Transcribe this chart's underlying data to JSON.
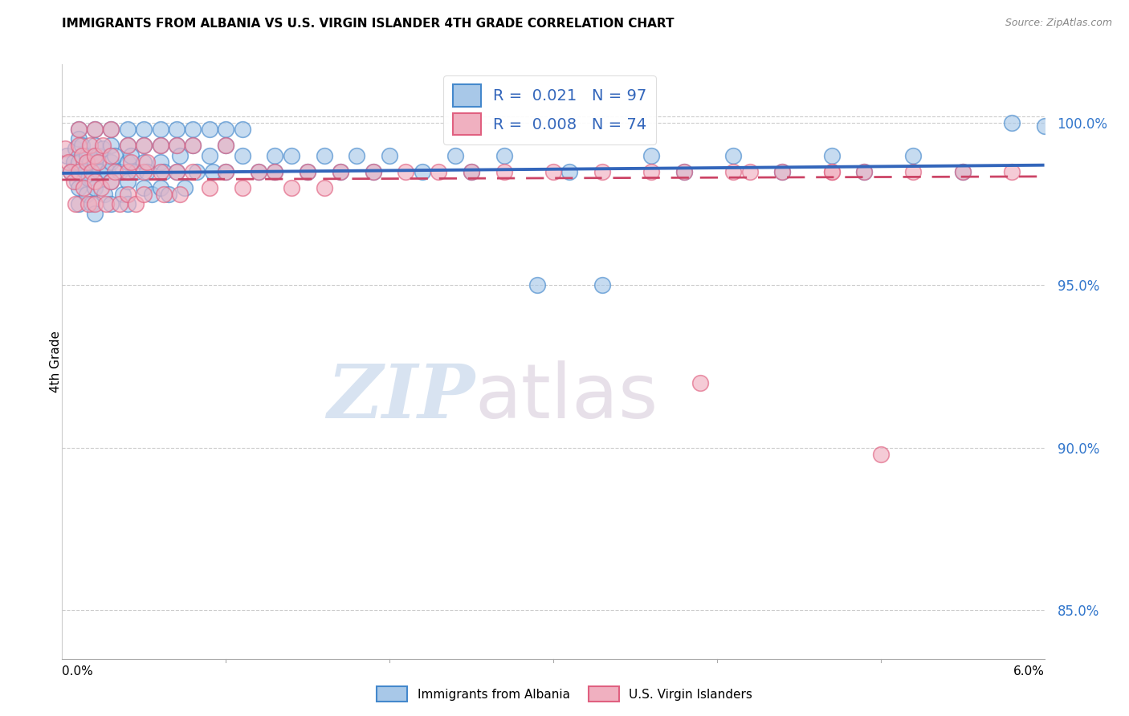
{
  "title": "IMMIGRANTS FROM ALBANIA VS U.S. VIRGIN ISLANDER 4TH GRADE CORRELATION CHART",
  "source": "Source: ZipAtlas.com",
  "ylabel": "4th Grade",
  "xmin": 0.0,
  "xmax": 0.06,
  "ymin": 0.835,
  "ymax": 1.018,
  "yticks": [
    0.85,
    0.9,
    0.95,
    1.0
  ],
  "ytick_labels": [
    "85.0%",
    "90.0%",
    "95.0%",
    "100.0%"
  ],
  "legend_R1": "0.021",
  "legend_N1": "97",
  "legend_R2": "0.008",
  "legend_N2": "74",
  "blue_color": "#a8c8e8",
  "pink_color": "#f0b0c0",
  "blue_edge_color": "#4488cc",
  "pink_edge_color": "#e06080",
  "blue_line_color": "#3366bb",
  "pink_line_color": "#cc4466",
  "watermark_zip": "ZIP",
  "watermark_atlas": "atlas",
  "blue_scatter_x": [
    0.0003,
    0.0005,
    0.0007,
    0.0008,
    0.0009,
    0.001,
    0.001,
    0.001,
    0.001,
    0.001,
    0.0012,
    0.0014,
    0.0015,
    0.0015,
    0.0016,
    0.0017,
    0.0018,
    0.002,
    0.002,
    0.002,
    0.002,
    0.002,
    0.0022,
    0.0023,
    0.0025,
    0.0026,
    0.0028,
    0.003,
    0.003,
    0.003,
    0.003,
    0.003,
    0.0032,
    0.0035,
    0.0037,
    0.004,
    0.004,
    0.004,
    0.004,
    0.004,
    0.0042,
    0.0045,
    0.005,
    0.005,
    0.005,
    0.005,
    0.0052,
    0.0055,
    0.006,
    0.006,
    0.006,
    0.006,
    0.0062,
    0.0065,
    0.007,
    0.007,
    0.007,
    0.0072,
    0.0075,
    0.008,
    0.008,
    0.0082,
    0.009,
    0.009,
    0.0092,
    0.01,
    0.01,
    0.01,
    0.011,
    0.011,
    0.012,
    0.013,
    0.013,
    0.014,
    0.015,
    0.016,
    0.017,
    0.018,
    0.019,
    0.02,
    0.022,
    0.024,
    0.025,
    0.027,
    0.029,
    0.031,
    0.033,
    0.036,
    0.038,
    0.041,
    0.044,
    0.047,
    0.049,
    0.052,
    0.055,
    0.058,
    0.06
  ],
  "blue_scatter_y": [
    0.99,
    0.985,
    0.988,
    0.992,
    0.982,
    0.998,
    0.995,
    0.988,
    0.98,
    0.975,
    0.993,
    0.985,
    0.99,
    0.978,
    0.983,
    0.988,
    0.975,
    0.998,
    0.993,
    0.988,
    0.98,
    0.972,
    0.99,
    0.985,
    0.992,
    0.978,
    0.985,
    0.998,
    0.993,
    0.988,
    0.982,
    0.975,
    0.99,
    0.985,
    0.978,
    0.998,
    0.993,
    0.988,
    0.982,
    0.975,
    0.99,
    0.985,
    0.998,
    0.993,
    0.988,
    0.98,
    0.985,
    0.978,
    0.998,
    0.993,
    0.988,
    0.98,
    0.985,
    0.978,
    0.998,
    0.993,
    0.985,
    0.99,
    0.98,
    0.998,
    0.993,
    0.985,
    0.998,
    0.99,
    0.985,
    0.998,
    0.993,
    0.985,
    0.998,
    0.99,
    0.985,
    0.99,
    0.985,
    0.99,
    0.985,
    0.99,
    0.985,
    0.99,
    0.985,
    0.99,
    0.985,
    0.99,
    0.985,
    0.99,
    0.95,
    0.985,
    0.95,
    0.99,
    0.985,
    0.99,
    0.985,
    0.99,
    0.985,
    0.99,
    0.985,
    1.0,
    0.999
  ],
  "pink_scatter_x": [
    0.0002,
    0.0004,
    0.0005,
    0.0007,
    0.0008,
    0.001,
    0.001,
    0.001,
    0.0012,
    0.0013,
    0.0015,
    0.0016,
    0.0017,
    0.0018,
    0.002,
    0.002,
    0.002,
    0.002,
    0.0022,
    0.0024,
    0.0025,
    0.0027,
    0.003,
    0.003,
    0.003,
    0.0032,
    0.0035,
    0.004,
    0.004,
    0.004,
    0.0042,
    0.0045,
    0.005,
    0.005,
    0.005,
    0.0052,
    0.006,
    0.006,
    0.0062,
    0.007,
    0.007,
    0.0072,
    0.008,
    0.008,
    0.009,
    0.01,
    0.01,
    0.011,
    0.012,
    0.013,
    0.014,
    0.015,
    0.016,
    0.017,
    0.019,
    0.021,
    0.023,
    0.025,
    0.027,
    0.03,
    0.033,
    0.036,
    0.038,
    0.041,
    0.044,
    0.047,
    0.049,
    0.052,
    0.055,
    0.058,
    0.039,
    0.042,
    0.047,
    0.05
  ],
  "pink_scatter_y": [
    0.992,
    0.988,
    0.985,
    0.982,
    0.975,
    0.998,
    0.993,
    0.985,
    0.99,
    0.98,
    0.988,
    0.975,
    0.993,
    0.985,
    0.998,
    0.99,
    0.982,
    0.975,
    0.988,
    0.98,
    0.993,
    0.975,
    0.998,
    0.99,
    0.982,
    0.985,
    0.975,
    0.993,
    0.985,
    0.978,
    0.988,
    0.975,
    0.993,
    0.985,
    0.978,
    0.988,
    0.993,
    0.985,
    0.978,
    0.993,
    0.985,
    0.978,
    0.993,
    0.985,
    0.98,
    0.993,
    0.985,
    0.98,
    0.985,
    0.985,
    0.98,
    0.985,
    0.98,
    0.985,
    0.985,
    0.985,
    0.985,
    0.985,
    0.985,
    0.985,
    0.985,
    0.985,
    0.985,
    0.985,
    0.985,
    0.985,
    0.985,
    0.985,
    0.985,
    0.985,
    0.92,
    0.985,
    0.985,
    0.898
  ]
}
